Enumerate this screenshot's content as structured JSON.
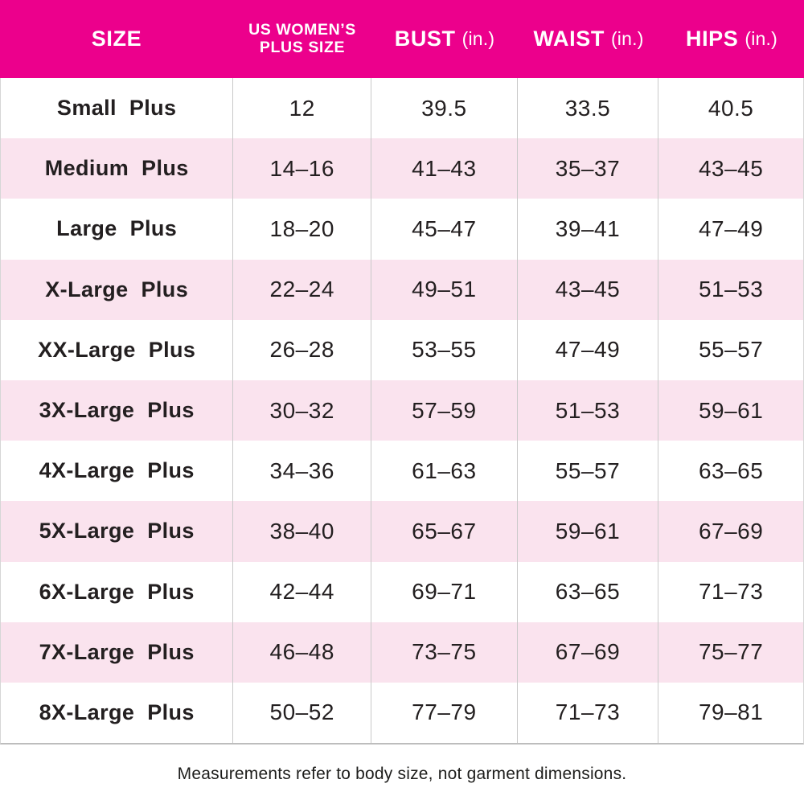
{
  "colors": {
    "header_bg": "#ec008c",
    "row_pink": "#fae3ee",
    "divider": "#c9c9c9",
    "text": "#231f20"
  },
  "header": {
    "columns": [
      {
        "title": "SIZE",
        "unit": ""
      },
      {
        "title": "US WOMEN’S\nPLUS SIZE",
        "unit": ""
      },
      {
        "title": "BUST",
        "unit": "(in.)"
      },
      {
        "title": "WAIST",
        "unit": "(in.)"
      },
      {
        "title": "HIPS",
        "unit": "(in.)"
      }
    ]
  },
  "chart_data": {
    "type": "table",
    "title": "",
    "columns": [
      "SIZE",
      "US WOMEN'S PLUS SIZE",
      "BUST (in.)",
      "WAIST (in.)",
      "HIPS (in.)"
    ],
    "rows": [
      [
        "Small Plus",
        "12",
        "39.5",
        "33.5",
        "40.5"
      ],
      [
        "Medium Plus",
        "14–16",
        "41–43",
        "35–37",
        "43–45"
      ],
      [
        "Large Plus",
        "18–20",
        "45–47",
        "39–41",
        "47–49"
      ],
      [
        "X-Large Plus",
        "22–24",
        "49–51",
        "43–45",
        "51–53"
      ],
      [
        "XX-Large Plus",
        "26–28",
        "53–55",
        "47–49",
        "55–57"
      ],
      [
        "3X-Large Plus",
        "30–32",
        "57–59",
        "51–53",
        "59–61"
      ],
      [
        "4X-Large Plus",
        "34–36",
        "61–63",
        "55–57",
        "63–65"
      ],
      [
        "5X-Large Plus",
        "38–40",
        "65–67",
        "59–61",
        "67–69"
      ],
      [
        "6X-Large Plus",
        "42–44",
        "69–71",
        "63–65",
        "71–73"
      ],
      [
        "7X-Large Plus",
        "46–48",
        "73–75",
        "67–69",
        "75–77"
      ],
      [
        "8X-Large Plus",
        "50–52",
        "77–79",
        "71–73",
        "79–81"
      ]
    ],
    "layout": {
      "striped_rows": true,
      "stripe_color": "#fae3ee",
      "header_color": "#ec008c",
      "grid": "vertical-dividers"
    }
  },
  "footer": {
    "note": "Measurements refer to body size, not garment dimensions."
  }
}
